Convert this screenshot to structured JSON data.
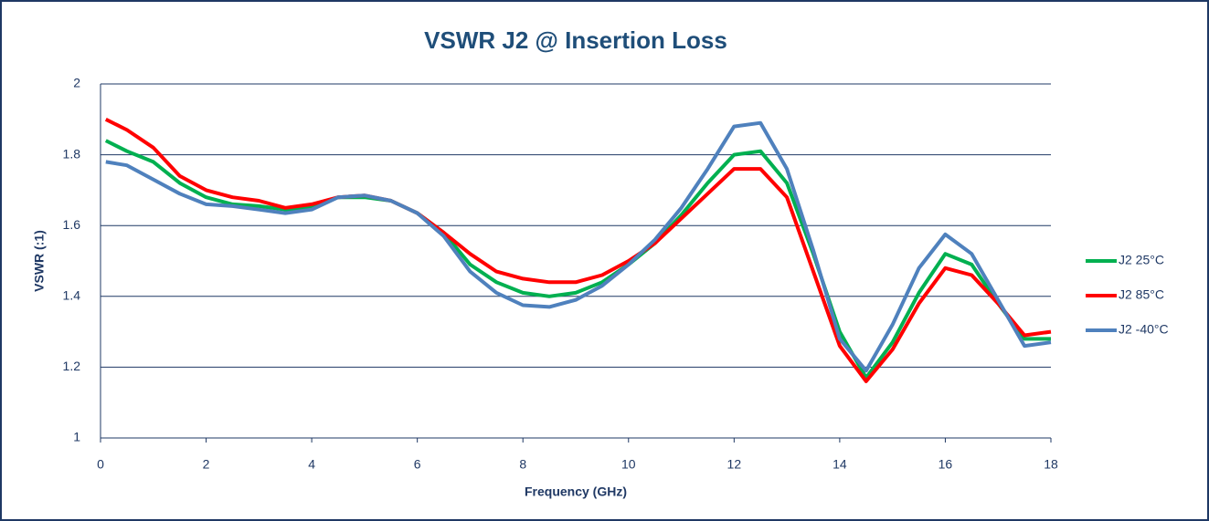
{
  "chart_data": {
    "type": "line",
    "title": "VSWR J2 @ Insertion Loss",
    "x_label": "Frequency (GHz)",
    "y_label": "VSWR (:1)",
    "x": [
      0.1,
      0.5,
      1,
      1.5,
      2,
      2.5,
      3,
      3.5,
      4,
      4.5,
      5,
      5.5,
      6,
      6.5,
      7,
      7.5,
      8,
      8.5,
      9,
      9.5,
      10,
      10.5,
      11,
      11.5,
      12,
      12.5,
      13,
      13.5,
      14,
      14.5,
      15,
      15.5,
      16,
      16.5,
      17,
      17.5,
      18
    ],
    "series": [
      {
        "name": "J2 25°C",
        "color": "#00b050",
        "values": [
          1.84,
          1.81,
          1.78,
          1.72,
          1.68,
          1.66,
          1.655,
          1.645,
          1.65,
          1.68,
          1.68,
          1.67,
          1.635,
          1.58,
          1.49,
          1.44,
          1.41,
          1.4,
          1.41,
          1.44,
          1.49,
          1.55,
          1.63,
          1.72,
          1.8,
          1.81,
          1.72,
          1.52,
          1.3,
          1.17,
          1.27,
          1.41,
          1.52,
          1.49,
          1.38,
          1.28,
          1.28
        ]
      },
      {
        "name": "J2 85°C",
        "color": "#ff0000",
        "values": [
          1.9,
          1.87,
          1.82,
          1.74,
          1.7,
          1.68,
          1.67,
          1.65,
          1.66,
          1.68,
          1.685,
          1.67,
          1.635,
          1.58,
          1.52,
          1.47,
          1.45,
          1.44,
          1.44,
          1.46,
          1.5,
          1.55,
          1.62,
          1.69,
          1.76,
          1.76,
          1.68,
          1.47,
          1.26,
          1.16,
          1.25,
          1.38,
          1.48,
          1.46,
          1.38,
          1.29,
          1.3
        ]
      },
      {
        "name": "J2 -40°C",
        "color": "#4f81bd",
        "values": [
          1.78,
          1.77,
          1.73,
          1.69,
          1.66,
          1.655,
          1.645,
          1.635,
          1.645,
          1.68,
          1.685,
          1.67,
          1.635,
          1.57,
          1.47,
          1.41,
          1.375,
          1.37,
          1.39,
          1.43,
          1.49,
          1.56,
          1.65,
          1.76,
          1.88,
          1.89,
          1.76,
          1.53,
          1.28,
          1.19,
          1.32,
          1.48,
          1.575,
          1.52,
          1.39,
          1.26,
          1.27
        ]
      }
    ],
    "xlim": [
      0,
      18
    ],
    "xticks": [
      0,
      2,
      4,
      6,
      8,
      10,
      12,
      14,
      16,
      18
    ],
    "ylim": [
      1,
      2
    ],
    "yticks": [
      1,
      1.2,
      1.4,
      1.6,
      1.8,
      2
    ],
    "grid": true,
    "legend": "right"
  }
}
